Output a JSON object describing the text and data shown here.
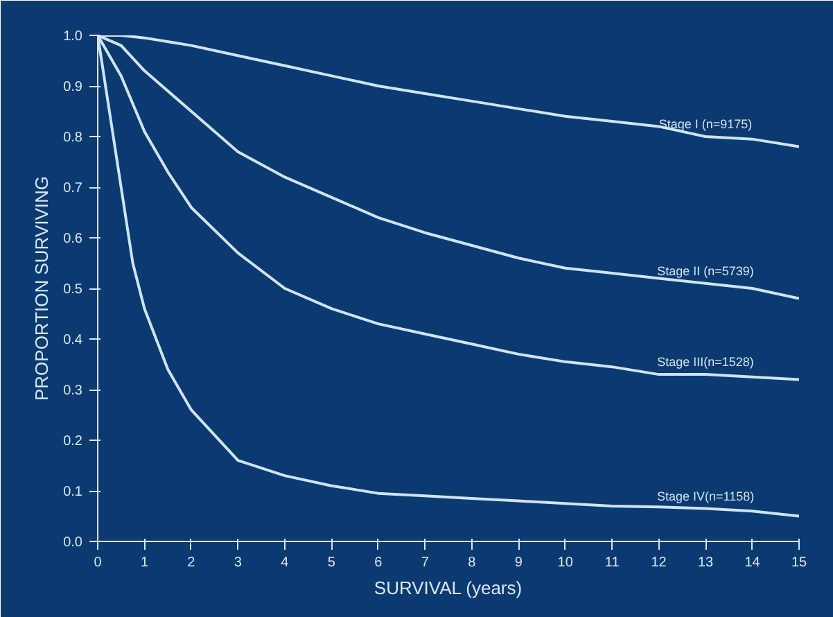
{
  "chart_data": {
    "type": "line",
    "xlabel": "SURVIVAL (years)",
    "ylabel": "PROPORTION SURVIVING",
    "xlim": [
      0,
      15
    ],
    "xticks": [
      0,
      1,
      2,
      3,
      4,
      5,
      6,
      7,
      8,
      9,
      10,
      11,
      12,
      13,
      14,
      15
    ],
    "ylim": [
      0,
      1.0
    ],
    "yticks": [
      {
        "value": 0,
        "label": "0.0"
      },
      {
        "value": 0.1,
        "label": "0.1"
      },
      {
        "value": 0.2,
        "label": "0.2"
      },
      {
        "value": 0.3,
        "label": "0.3"
      },
      {
        "value": 0.4,
        "label": "0.4"
      },
      {
        "value": 0.5,
        "label": "0.5"
      },
      {
        "value": 0.6,
        "label": "0.6"
      },
      {
        "value": 0.7,
        "label": "0.7"
      },
      {
        "value": 0.8,
        "label": "0.8"
      },
      {
        "value": 0.9,
        "label": "0.9"
      },
      {
        "value": 1.0,
        "label": "1.0"
      }
    ],
    "grid": false,
    "marker": "none",
    "line_style": "solid",
    "series": [
      {
        "name": "Stage I (n=9175)",
        "color": "#cfe3f2",
        "x": [
          0,
          0.5,
          1,
          2,
          3,
          4,
          5,
          6,
          7,
          8,
          9,
          10,
          11,
          12,
          13,
          14,
          15
        ],
        "values": [
          1.0,
          1.0,
          0.995,
          0.98,
          0.96,
          0.94,
          0.92,
          0.9,
          0.885,
          0.87,
          0.855,
          0.84,
          0.83,
          0.82,
          0.8,
          0.795,
          0.78
        ]
      },
      {
        "name": "Stage II (n=5739)",
        "color": "#cfe3f2",
        "x": [
          0,
          0.5,
          1,
          2,
          3,
          4,
          5,
          6,
          7,
          8,
          9,
          10,
          11,
          12,
          13,
          14,
          15
        ],
        "values": [
          1.0,
          0.98,
          0.93,
          0.85,
          0.77,
          0.72,
          0.68,
          0.64,
          0.61,
          0.585,
          0.56,
          0.54,
          0.53,
          0.52,
          0.51,
          0.5,
          0.48
        ]
      },
      {
        "name": "Stage III(n=1528)",
        "color": "#cfe3f2",
        "x": [
          0,
          0.5,
          1,
          1.5,
          2,
          3,
          4,
          5,
          6,
          7,
          8,
          9,
          10,
          11,
          12,
          13,
          14,
          15
        ],
        "values": [
          1.0,
          0.92,
          0.81,
          0.73,
          0.66,
          0.57,
          0.5,
          0.46,
          0.43,
          0.41,
          0.39,
          0.37,
          0.355,
          0.345,
          0.33,
          0.33,
          0.325,
          0.32
        ]
      },
      {
        "name": "Stage IV(n=1158)",
        "color": "#cfe3f2",
        "x": [
          0,
          0.25,
          0.5,
          0.75,
          1,
          1.5,
          2,
          2.5,
          3,
          4,
          5,
          6,
          7,
          8,
          9,
          10,
          11,
          12,
          13,
          14,
          15
        ],
        "values": [
          1.0,
          0.85,
          0.7,
          0.55,
          0.46,
          0.34,
          0.26,
          0.21,
          0.16,
          0.13,
          0.11,
          0.095,
          0.09,
          0.085,
          0.08,
          0.075,
          0.07,
          0.068,
          0.065,
          0.06,
          0.05
        ]
      }
    ]
  }
}
